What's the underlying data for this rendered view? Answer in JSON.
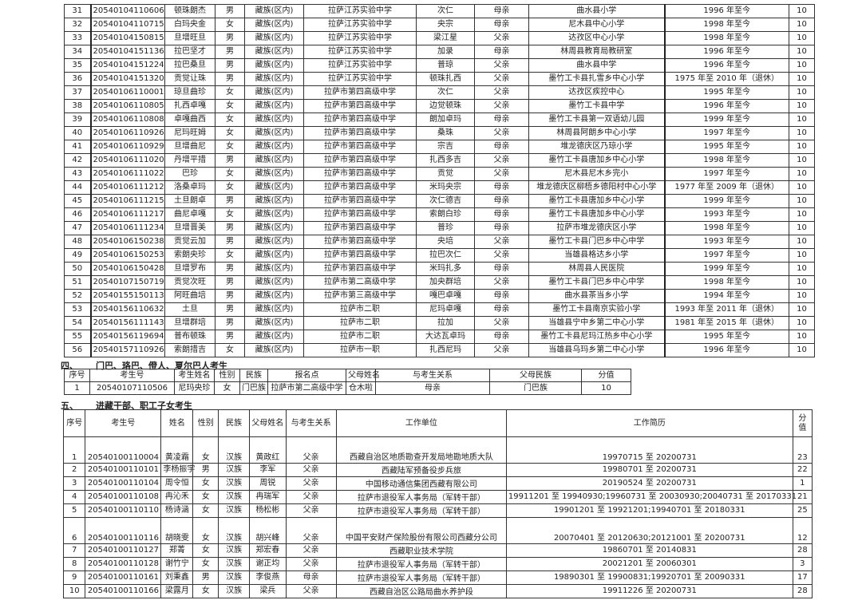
{
  "table1": {
    "rows": [
      {
        "no": "31",
        "id": "20540104110606",
        "name": "顿珠朗杰",
        "gender": "男",
        "ethnicity": "藏族(区内)",
        "site": "拉萨江苏实验中学",
        "parent": "次仁",
        "relation": "母亲",
        "unit": "曲水县小学",
        "history": "1996 年至今",
        "score": "10"
      },
      {
        "no": "32",
        "id": "20540104110715",
        "name": "白玛央金",
        "gender": "女",
        "ethnicity": "藏族(区内)",
        "site": "拉萨江苏实验中学",
        "parent": "央宗",
        "relation": "母亲",
        "unit": "尼木县中心小学",
        "history": "1998 年至今",
        "score": "10"
      },
      {
        "no": "33",
        "id": "20540104150815",
        "name": "旦增旺旦",
        "gender": "男",
        "ethnicity": "藏族(区内)",
        "site": "拉萨江苏实验中学",
        "parent": "梁江星",
        "relation": "父亲",
        "unit": "达孜区中心小学",
        "history": "1998 年至今",
        "score": "10"
      },
      {
        "no": "34",
        "id": "20540104151136",
        "name": "拉巴坚才",
        "gender": "男",
        "ethnicity": "藏族(区内)",
        "site": "拉萨江苏实验中学",
        "parent": "加录",
        "relation": "母亲",
        "unit": "林周县教育局教研室",
        "history": "1996 年至今",
        "score": "10"
      },
      {
        "no": "35",
        "id": "20540104151224",
        "name": "拉巴桑旦",
        "gender": "男",
        "ethnicity": "藏族(区内)",
        "site": "拉萨江苏实验中学",
        "parent": "普琼",
        "relation": "父亲",
        "unit": "曲水县中学",
        "history": "1996 年至今",
        "score": "10"
      },
      {
        "no": "36",
        "id": "20540104151320",
        "name": "贡觉让珠",
        "gender": "男",
        "ethnicity": "藏族(区内)",
        "site": "拉萨江苏实验中学",
        "parent": "顿珠扎西",
        "relation": "父亲",
        "unit": "墨竹工卡县扎雪乡中心小学",
        "history": "1975 年至 2010 年（退休）",
        "score": "10"
      },
      {
        "no": "37",
        "id": "20540106110001",
        "name": "琼旦曲珍",
        "gender": "女",
        "ethnicity": "藏族(区内)",
        "site": "拉萨市第四高级中学",
        "parent": "次仁",
        "relation": "父亲",
        "unit": "达孜区疾控中心",
        "history": "1995 年至今",
        "score": "10"
      },
      {
        "no": "38",
        "id": "20540106110805",
        "name": "扎西卓嘎",
        "gender": "女",
        "ethnicity": "藏族(区内)",
        "site": "拉萨市第四高级中学",
        "parent": "边觉顿珠",
        "relation": "父亲",
        "unit": "墨竹工卡县中学",
        "history": "1996 年至今",
        "score": "10"
      },
      {
        "no": "39",
        "id": "20540106110808",
        "name": "卓嘎曲西",
        "gender": "女",
        "ethnicity": "藏族(区内)",
        "site": "拉萨市第四高级中学",
        "parent": "朗加卓玛",
        "relation": "母亲",
        "unit": "墨竹工卡县第一双语幼儿园",
        "history": "1999 年至今",
        "score": "10"
      },
      {
        "no": "40",
        "id": "20540106110926",
        "name": "尼玛旺姆",
        "gender": "女",
        "ethnicity": "藏族(区内)",
        "site": "拉萨市第四高级中学",
        "parent": "桑珠",
        "relation": "父亲",
        "unit": "林周县阿朗乡中心小学",
        "history": "1997 年至今",
        "score": "10"
      },
      {
        "no": "41",
        "id": "20540106110929",
        "name": "旦增曲尼",
        "gender": "女",
        "ethnicity": "藏族(区内)",
        "site": "拉萨市第四高级中学",
        "parent": "宗吉",
        "relation": "母亲",
        "unit": "堆龙德庆区乃琼小学",
        "history": "1995 年至今",
        "score": "10"
      },
      {
        "no": "42",
        "id": "20540106111020",
        "name": "丹增平措",
        "gender": "男",
        "ethnicity": "藏族(区内)",
        "site": "拉萨市第四高级中学",
        "parent": "扎西多吉",
        "relation": "父亲",
        "unit": "墨竹工卡县唐加乡中心小学",
        "history": "1998 年至今",
        "score": "10"
      },
      {
        "no": "43",
        "id": "20540106111022",
        "name": "巴珍",
        "gender": "女",
        "ethnicity": "藏族(区内)",
        "site": "拉萨市第四高级中学",
        "parent": "贡觉",
        "relation": "父亲",
        "unit": "尼木县尼木乡完小",
        "history": "1997 年至今",
        "score": "10"
      },
      {
        "no": "44",
        "id": "20540106111212",
        "name": "洛桑卓玛",
        "gender": "女",
        "ethnicity": "藏族(区内)",
        "site": "拉萨市第四高级中学",
        "parent": "米玛央宗",
        "relation": "母亲",
        "unit": "堆龙德庆区柳梧乡德阳村中心小学",
        "history": "1977 年至 2009 年（退休）",
        "score": "10"
      },
      {
        "no": "45",
        "id": "20540106111215",
        "name": "土旦朗卓",
        "gender": "男",
        "ethnicity": "藏族(区内)",
        "site": "拉萨市第四高级中学",
        "parent": "次仁德吉",
        "relation": "母亲",
        "unit": "墨竹工卡县唐加乡中心小学",
        "history": "1999 年至今",
        "score": "10"
      },
      {
        "no": "46",
        "id": "20540106111217",
        "name": "曲尼卓嘎",
        "gender": "女",
        "ethnicity": "藏族(区内)",
        "site": "拉萨市第四高级中学",
        "parent": "索朗白珍",
        "relation": "母亲",
        "unit": "墨竹工卡县唐加乡中心小学",
        "history": "1993 年至今",
        "score": "10"
      },
      {
        "no": "47",
        "id": "20540106111234",
        "name": "旦增晋美",
        "gender": "男",
        "ethnicity": "藏族(区内)",
        "site": "拉萨市第四高级中学",
        "parent": "普珍",
        "relation": "母亲",
        "unit": "拉萨市堆龙德庆区小学",
        "history": "1998 年至今",
        "score": "10"
      },
      {
        "no": "48",
        "id": "20540106150238",
        "name": "贡觉云加",
        "gender": "男",
        "ethnicity": "藏族(区内)",
        "site": "拉萨市第四高级中学",
        "parent": "央培",
        "relation": "父亲",
        "unit": "墨竹工卡县门巴乡中心中学",
        "history": "1993 年至今",
        "score": "10"
      },
      {
        "no": "49",
        "id": "20540106150253",
        "name": "索朗央珍",
        "gender": "女",
        "ethnicity": "藏族(区内)",
        "site": "拉萨市第四高级中学",
        "parent": "拉巴次仁",
        "relation": "父亲",
        "unit": "当雄县格达乡小学",
        "history": "1997 年至今",
        "score": "10"
      },
      {
        "no": "50",
        "id": "20540106150428",
        "name": "旦增罗布",
        "gender": "男",
        "ethnicity": "藏族(区内)",
        "site": "拉萨市第四高级中学",
        "parent": "米玛扎多",
        "relation": "母亲",
        "unit": "林周县人民医院",
        "history": "1999 年至今",
        "score": "10"
      },
      {
        "no": "51",
        "id": "20540107150719",
        "name": "贡觉次旺",
        "gender": "男",
        "ethnicity": "藏族(区内)",
        "site": "拉萨市第二高级中学",
        "parent": "加央群培",
        "relation": "父亲",
        "unit": "墨竹工卡县门巴乡中心中学",
        "history": "1998 年至今",
        "score": "10"
      },
      {
        "no": "52",
        "id": "20540155150113",
        "name": "阿旺曲培",
        "gender": "男",
        "ethnicity": "藏族(区内)",
        "site": "拉萨市第三高级中学",
        "parent": "嘎巴卓嘎",
        "relation": "母亲",
        "unit": "曲水县茶当乡小学",
        "history": "1994 年至今",
        "score": "10"
      },
      {
        "no": "53",
        "id": "20540156110632",
        "name": "土旦",
        "gender": "男",
        "ethnicity": "藏族(区内)",
        "site": "拉萨市二职",
        "parent": "尼玛卓嘎",
        "relation": "母亲",
        "unit": "墨竹工卡县南京实验小学",
        "history": "1993 年至 2011 年（退休）",
        "score": "10"
      },
      {
        "no": "54",
        "id": "20540156111143",
        "name": "旦增群培",
        "gender": "男",
        "ethnicity": "藏族(区内)",
        "site": "拉萨市二职",
        "parent": "拉加",
        "relation": "父亲",
        "unit": "当雄县宁中乡第二中心小学",
        "history": "1981 年至 2015 年（退休）",
        "score": "10"
      },
      {
        "no": "55",
        "id": "20540156119694",
        "name": "普布顿珠",
        "gender": "男",
        "ethnicity": "藏族(区内)",
        "site": "拉萨市二职",
        "parent": "大达瓦卓玛",
        "relation": "母亲",
        "unit": "墨竹工卡县尼玛江热乡中心小学",
        "history": "1995 年至今",
        "score": "10"
      },
      {
        "no": "56",
        "id": "20540157110926",
        "name": "索朗措吉",
        "gender": "女",
        "ethnicity": "藏族(区内)",
        "site": "拉萨市一职",
        "parent": "扎西尼玛",
        "relation": "父亲",
        "unit": "当雄县乌玛乡第二中心小学",
        "history": "1996 年至今",
        "score": "10"
      }
    ]
  },
  "section4": {
    "number": "四、",
    "title": "门巴、珞巴、僜人、夏尔巴人考生",
    "headers": [
      "序号",
      "考生号",
      "考生姓名",
      "性别",
      "民族",
      "报名点",
      "父母姓名",
      "与考生关系",
      "父母民族",
      "分值"
    ],
    "rows": [
      {
        "no": "1",
        "id": "20540107110506",
        "name": "尼玛央珍",
        "gender": "女",
        "ethnicity": "门巴族",
        "site": "拉萨市第二高级中学",
        "parent": "仓木啦",
        "relation": "母亲",
        "parent_ethnicity": "门巴族",
        "score": "10"
      }
    ]
  },
  "section5": {
    "number": "五、",
    "title": "进藏干部、职工子女考生",
    "headers": [
      "序号",
      "考生号",
      "姓名",
      "性别",
      "民族",
      "父母姓名",
      "与考生关系",
      "工作单位",
      "工作简历",
      "分值"
    ],
    "rows": [
      {
        "no": "1",
        "id": "20540100110004",
        "name": "黄凌霜",
        "gender": "女",
        "ethnicity": "汉族",
        "parent": "黄政红",
        "relation": "父亲",
        "unit": "西藏自治区地质勘查开发局地勘地质大队",
        "history": "19970715 至 20200731",
        "score": "23"
      },
      {
        "no": "2",
        "id": "20540100110101",
        "name": "李杨振宇",
        "gender": "男",
        "ethnicity": "汉族",
        "parent": "李军",
        "relation": "父亲",
        "unit": "西藏陆军预备役步兵旅",
        "history": "19980701 至 20200731",
        "score": "22"
      },
      {
        "no": "3",
        "id": "20540100110104",
        "name": "周令恒",
        "gender": "女",
        "ethnicity": "汉族",
        "parent": "周锐",
        "relation": "父亲",
        "unit": "中国移动通信集团西藏有限公司",
        "history": "20190524 至 20200731",
        "score": "1"
      },
      {
        "no": "4",
        "id": "20540100110108",
        "name": "冉沁禾",
        "gender": "女",
        "ethnicity": "汉族",
        "parent": "冉瑞军",
        "relation": "父亲",
        "unit": "拉萨市退役军人事务局（军转干部）",
        "history": "19911201 至 19940930;19960731 至 20030930;20040731 至 20170331",
        "score": "21"
      },
      {
        "no": "5",
        "id": "20540100110110",
        "name": "杨诗涵",
        "gender": "女",
        "ethnicity": "汉族",
        "parent": "杨松彬",
        "relation": "父亲",
        "unit": "拉萨市退役军人事务局（军转干部）",
        "history": "19901201 至 19921201;19940701 至 20180331",
        "score": "25"
      },
      {
        "no": "6",
        "id": "20540100110116",
        "name": "胡晓雯",
        "gender": "女",
        "ethnicity": "汉族",
        "parent": "胡兴峰",
        "relation": "父亲",
        "unit": "中国平安财产保险股份有限公司西藏分公司",
        "history": "20070401 至 20120630;20121001 至 20200731",
        "score": "12"
      },
      {
        "no": "7",
        "id": "20540100110127",
        "name": "郑菁",
        "gender": "女",
        "ethnicity": "汉族",
        "parent": "郑宏春",
        "relation": "父亲",
        "unit": "西藏职业技术学院",
        "history": "19860701 至 20140831",
        "score": "28"
      },
      {
        "no": "8",
        "id": "20540100110128",
        "name": "谢竹宁",
        "gender": "女",
        "ethnicity": "汉族",
        "parent": "谢正均",
        "relation": "父亲",
        "unit": "拉萨市退役军人事务局（军转干部）",
        "history": "20021201 至 20060301",
        "score": "3"
      },
      {
        "no": "9",
        "id": "20540100110161",
        "name": "刘秉鑫",
        "gender": "男",
        "ethnicity": "汉族",
        "parent": "李俊燕",
        "relation": "母亲",
        "unit": "拉萨市退役军人事务局（军转干部）",
        "history": "19890301 至 19900831;19920701 至 20090331",
        "score": "17"
      },
      {
        "no": "10",
        "id": "20540100110166",
        "name": "梁露月",
        "gender": "女",
        "ethnicity": "汉族",
        "parent": "梁兵",
        "relation": "父亲",
        "unit": "西藏自治区公路局曲水养护段",
        "history": "19911226 至 20200731",
        "score": "28"
      }
    ]
  }
}
